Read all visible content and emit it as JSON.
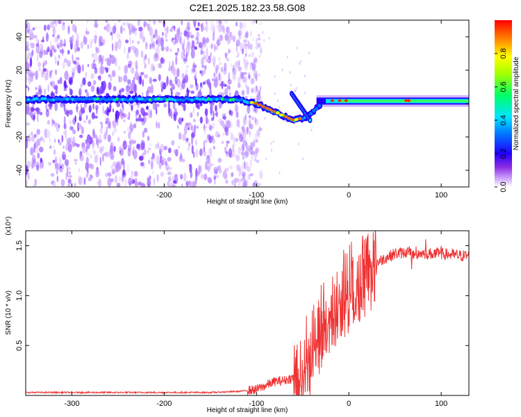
{
  "figure_title": "C2E1.2025.182.23.58.G08",
  "colors": {
    "trace": "#ee3333",
    "frame": "#000000",
    "background": "#ffffff"
  },
  "chart_data": [
    {
      "type": "heatmap",
      "title": "C2E1.2025.182.23.58.G08",
      "xlabel": "Height of straight line (km)",
      "ylabel": "Frequency (Hz)",
      "xlim": [
        -350,
        130
      ],
      "ylim": [
        -50,
        50
      ],
      "x_ticks": [
        -300,
        -200,
        -100,
        0,
        100
      ],
      "y_ticks": [
        -40,
        -20,
        0,
        20,
        40
      ],
      "colorbar": {
        "label": "Normalized spectral amplitude",
        "range": [
          0,
          1
        ],
        "ticks": [
          "0.0",
          "0.2",
          "0.4",
          "0.6",
          "0.8"
        ],
        "tick_values": [
          0,
          0.2,
          0.4,
          0.6,
          0.8
        ],
        "colormap": "rainbow"
      },
      "features": {
        "carrier_line": [
          {
            "x": -350,
            "y": 2.5
          },
          {
            "x": -120,
            "y": 2.5
          },
          {
            "x": -100,
            "y": 0
          },
          {
            "x": -80,
            "y": -5
          },
          {
            "x": -60,
            "y": -10
          },
          {
            "x": -45,
            "y": -8
          },
          {
            "x": -30,
            "y": 0
          },
          {
            "x": 0,
            "y": 2
          },
          {
            "x": 130,
            "y": 1.5
          }
        ],
        "secondary_branch": [
          {
            "x": -62,
            "y": 6
          },
          {
            "x": -52,
            "y": -2
          },
          {
            "x": -42,
            "y": -10
          }
        ],
        "noise_region_x": [
          -350,
          -115
        ]
      }
    },
    {
      "type": "line",
      "title": "",
      "xlabel": "Height of straight line (km)",
      "ylabel": "SNR (10 * v/v)",
      "y_multiplier": "(x10⁴)",
      "xlim": [
        -350,
        130
      ],
      "ylim": [
        0,
        1.65
      ],
      "x_ticks": [
        -300,
        -200,
        -100,
        0,
        100
      ],
      "y_ticks": [
        0.5,
        1.0,
        1.5
      ],
      "y_tick_labels": [
        "0.5",
        "1.0",
        "1.5"
      ],
      "series": [
        {
          "color": "#ee3333",
          "x": [
            -350,
            -300,
            -250,
            -200,
            -150,
            -120,
            -100,
            -90,
            -80,
            -70,
            -60,
            -50,
            -45,
            -40,
            -35,
            -30,
            -25,
            -20,
            -15,
            -10,
            -5,
            0,
            10,
            20,
            30,
            40,
            50,
            60,
            70,
            80,
            90,
            100,
            110,
            120,
            130
          ],
          "values": [
            0.03,
            0.03,
            0.03,
            0.03,
            0.03,
            0.04,
            0.06,
            0.1,
            0.14,
            0.15,
            0.18,
            0.28,
            0.38,
            0.52,
            0.62,
            0.78,
            0.82,
            0.88,
            0.95,
            1.02,
            1.05,
            1.1,
            1.2,
            1.28,
            1.33,
            1.38,
            1.42,
            1.43,
            1.42,
            1.42,
            1.42,
            1.42,
            1.41,
            1.4,
            1.4
          ]
        }
      ]
    }
  ]
}
